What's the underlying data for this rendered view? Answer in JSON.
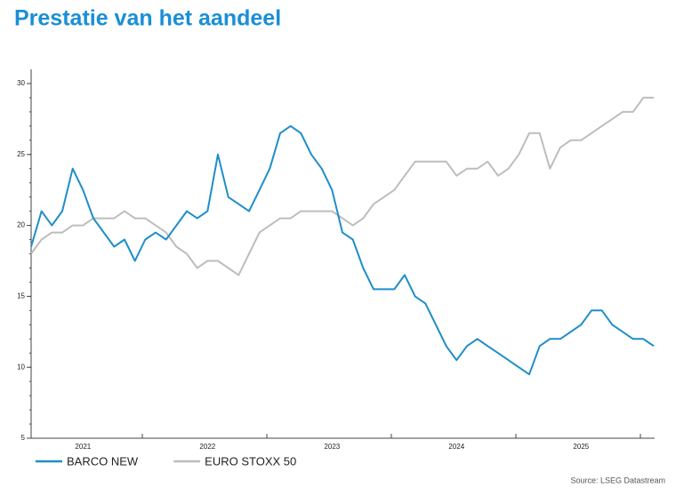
{
  "chart_data": {
    "type": "line",
    "title": "Prestatie van het aandeel",
    "categories": [
      null,
      null,
      null,
      null,
      null,
      "2021",
      null,
      null,
      null,
      null,
      null,
      null,
      null,
      null,
      null,
      null,
      null,
      "2022",
      null,
      null,
      null,
      null,
      null,
      null,
      null,
      null,
      null,
      null,
      null,
      "2023",
      null,
      null,
      null,
      null,
      null,
      null,
      null,
      null,
      null,
      null,
      null,
      "2024",
      null,
      null,
      null,
      null,
      null,
      null,
      null,
      null,
      null,
      null,
      null,
      "2025",
      null,
      null,
      null,
      null,
      null,
      null,
      null
    ],
    "series": [
      {
        "name": "BARCO NEW",
        "color": "#1e8ec9",
        "values": [
          18.5,
          21,
          20,
          21,
          24,
          22.5,
          20.5,
          19.5,
          18.5,
          19,
          17.5,
          19,
          19.5,
          19,
          20,
          21,
          20.5,
          21,
          25,
          22,
          21.5,
          21,
          22.5,
          24,
          26.5,
          27,
          26.5,
          25,
          24,
          22.5,
          19.5,
          19,
          17,
          15.5,
          15.5,
          15.5,
          16.5,
          15,
          14.5,
          13,
          11.5,
          10.5,
          11.5,
          12,
          11.5,
          11,
          10.5,
          10,
          9.5,
          11.5,
          12,
          12,
          12.5,
          13,
          14,
          14,
          13,
          12.5,
          12,
          12,
          11.5
        ]
      },
      {
        "name": "EURO STOXX 50",
        "color": "#bdbdbd",
        "values": [
          18,
          19,
          19.5,
          19.5,
          20,
          20,
          20.5,
          20.5,
          20.5,
          21,
          20.5,
          20.5,
          20,
          19.5,
          18.5,
          18,
          17,
          17.5,
          17.5,
          17,
          16.5,
          18,
          19.5,
          20,
          20.5,
          20.5,
          21,
          21,
          21,
          21,
          20.5,
          20,
          20.5,
          21.5,
          22,
          22.5,
          23.5,
          24.5,
          24.5,
          24.5,
          24.5,
          23.5,
          24,
          24,
          24.5,
          23.5,
          24,
          25,
          26.5,
          26.5,
          24,
          25.5,
          26,
          26,
          26.5,
          27,
          27.5,
          28,
          28,
          29,
          29
        ]
      }
    ],
    "ylim": [
      5,
      31
    ],
    "yticks": [
      5,
      10,
      15,
      20,
      25,
      30
    ],
    "source": "Source: LSEG Datastream"
  }
}
